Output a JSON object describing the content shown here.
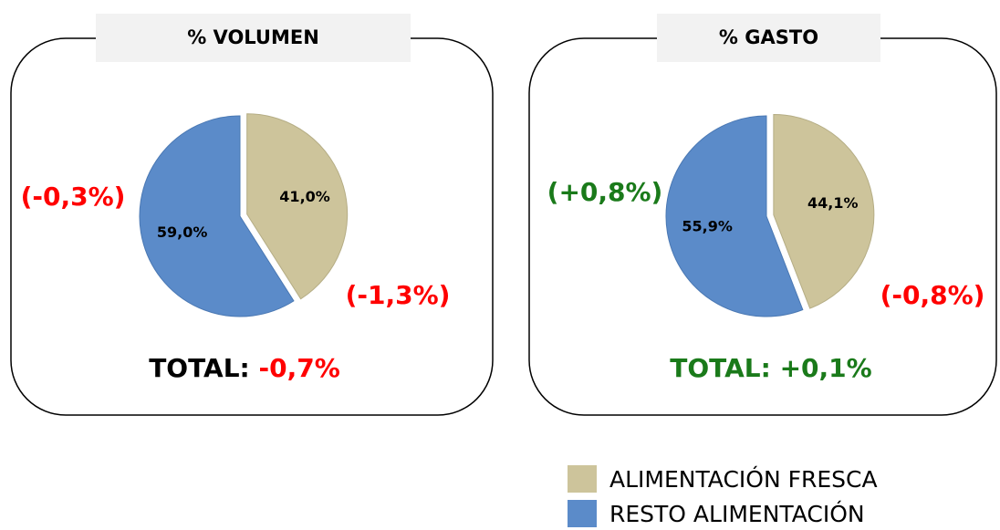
{
  "legend": [
    {
      "name": "ALIMENTACIÓN FRESCA",
      "color": "#cdc49b"
    },
    {
      "name": "RESTO ALIMENTACIÓN",
      "color": "#5b8bc9"
    }
  ],
  "chart_data": [
    {
      "type": "pie",
      "title": "% VOLUMEN",
      "values": [
        41.0,
        59.0
      ],
      "value_labels": [
        "41,0%",
        "59,0%"
      ],
      "annotations": [
        {
          "text": "(-1,3%)",
          "color": "#ff0000"
        },
        {
          "text": "(-0,3%)",
          "color": "#ff0000"
        }
      ],
      "total_label": "TOTAL:",
      "total": {
        "text": "-0,7%",
        "color": "#ff0000"
      }
    },
    {
      "type": "pie",
      "title": "% GASTO",
      "values": [
        44.1,
        55.9
      ],
      "value_labels": [
        "44,1%",
        "55,9%"
      ],
      "annotations": [
        {
          "text": "(-0,8%)",
          "color": "#ff0000"
        },
        {
          "text": "(+0,8%)",
          "color": "#1a7a1a"
        }
      ],
      "total_label": "TOTAL:",
      "total": {
        "text": "+0,1%",
        "color": "#1a7a1a"
      }
    }
  ]
}
